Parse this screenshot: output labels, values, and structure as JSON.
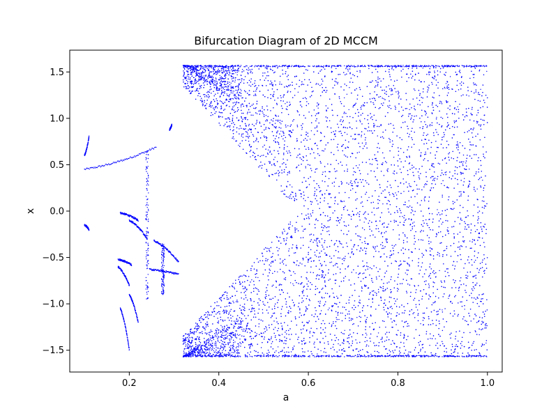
{
  "chart_data": {
    "type": "scatter",
    "title": "Bifurcation Diagram of 2D MCCM",
    "xlabel": "a",
    "ylabel": "x",
    "xlim": [
      0.067,
      1.033
    ],
    "ylim": [
      -1.735,
      1.735
    ],
    "grid": false,
    "x_ticks": [
      0.2,
      0.4,
      0.6,
      0.8,
      1.0
    ],
    "x_tick_labels": [
      "0.2",
      "0.4",
      "0.6",
      "0.8",
      "1.0"
    ],
    "y_ticks": [
      -1.5,
      -1.0,
      -0.5,
      0.0,
      0.5,
      1.0,
      1.5
    ],
    "y_tick_labels": [
      "−1.5",
      "−1.0",
      "−0.5",
      "0.0",
      "0.5",
      "1.0",
      "1.5"
    ],
    "series": [
      {
        "color": "#0000ff",
        "marker": "point",
        "a_range": [
          0.1,
          1.0
        ],
        "x_range": [
          -1.5708,
          1.5708
        ],
        "regions": [
          {
            "type": "branch",
            "a": [
              0.1,
              0.26
            ],
            "x": [
              0.45,
              0.69
            ]
          },
          {
            "type": "branch",
            "a": [
              0.1,
              0.11
            ],
            "x": [
              0.6,
              0.8
            ]
          },
          {
            "type": "branch",
            "a": [
              0.1,
              0.11
            ],
            "x": [
              -0.15,
              -0.2
            ]
          },
          {
            "type": "branch",
            "a": [
              0.18,
              0.22
            ],
            "x": [
              -0.02,
              -0.1
            ]
          },
          {
            "type": "branch",
            "a": [
              0.175,
              0.205
            ],
            "x": [
              -0.52,
              -0.58
            ]
          },
          {
            "type": "branch",
            "a": [
              0.175,
              0.2
            ],
            "x": [
              -0.6,
              -0.8
            ]
          },
          {
            "type": "branch",
            "a": [
              0.18,
              0.2
            ],
            "x": [
              -1.05,
              -1.5
            ]
          },
          {
            "type": "branch",
            "a": [
              0.2,
              0.24
            ],
            "x": [
              -0.1,
              -0.3
            ]
          },
          {
            "type": "branch",
            "a": [
              0.2,
              0.22
            ],
            "x": [
              -0.9,
              -1.2
            ]
          },
          {
            "type": "branch",
            "a": [
              0.255,
              0.31
            ],
            "x": [
              -0.32,
              -0.55
            ]
          },
          {
            "type": "branch",
            "a": [
              0.245,
              0.31
            ],
            "x": [
              -0.63,
              -0.68
            ]
          },
          {
            "type": "band",
            "a": 0.24,
            "x": [
              -0.95,
              0.7
            ]
          },
          {
            "type": "band",
            "a": 0.275,
            "x": [
              -0.9,
              -0.35
            ]
          },
          {
            "type": "branch",
            "a": [
              0.29,
              0.295
            ],
            "x": [
              0.88,
              0.93
            ]
          },
          {
            "type": "chaos",
            "a": [
              0.32,
              1.0
            ],
            "x": [
              -1.5708,
              1.5708
            ]
          }
        ]
      }
    ]
  }
}
